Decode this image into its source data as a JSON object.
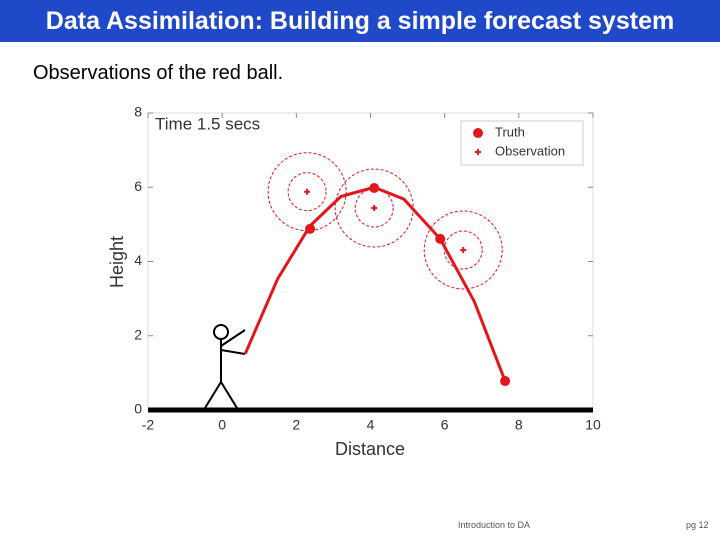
{
  "header": {
    "title": "Data Assimilation: Building a simple forecast system"
  },
  "subtitle": "Observations of the red ball.",
  "chart_data": {
    "type": "scatter",
    "title": "Time 1.5 secs",
    "xlabel": "Distance",
    "ylabel": "Height",
    "xlim": [
      -2,
      10
    ],
    "ylim": [
      0,
      8
    ],
    "xticks": [
      -2,
      0,
      2,
      4,
      6,
      8,
      10
    ],
    "yticks": [
      0,
      2,
      4,
      6,
      8
    ],
    "legend": "upper right",
    "series": [
      {
        "name": "Truth",
        "marker": "dot",
        "color": "#e3161b",
        "x": [
          2.37,
          4.1,
          5.88,
          7.63
        ],
        "values": [
          4.88,
          5.98,
          4.61,
          0.78
        ]
      },
      {
        "name": "Observation",
        "marker": "plus",
        "color": "#e3161b",
        "x": [
          2.29,
          4.1,
          6.5
        ],
        "values": [
          5.88,
          5.44,
          4.31
        ]
      }
    ],
    "curve": {
      "color": "#e3161b",
      "x": [
        0.62,
        1.5,
        2.37,
        3.2,
        4.1,
        4.9,
        5.88,
        6.8,
        7.63
      ],
      "values": [
        1.51,
        3.54,
        4.96,
        5.75,
        6.0,
        5.68,
        4.61,
        2.92,
        0.78
      ]
    }
  },
  "footer": {
    "left": "Introduction to DA",
    "right": "pg 12"
  }
}
